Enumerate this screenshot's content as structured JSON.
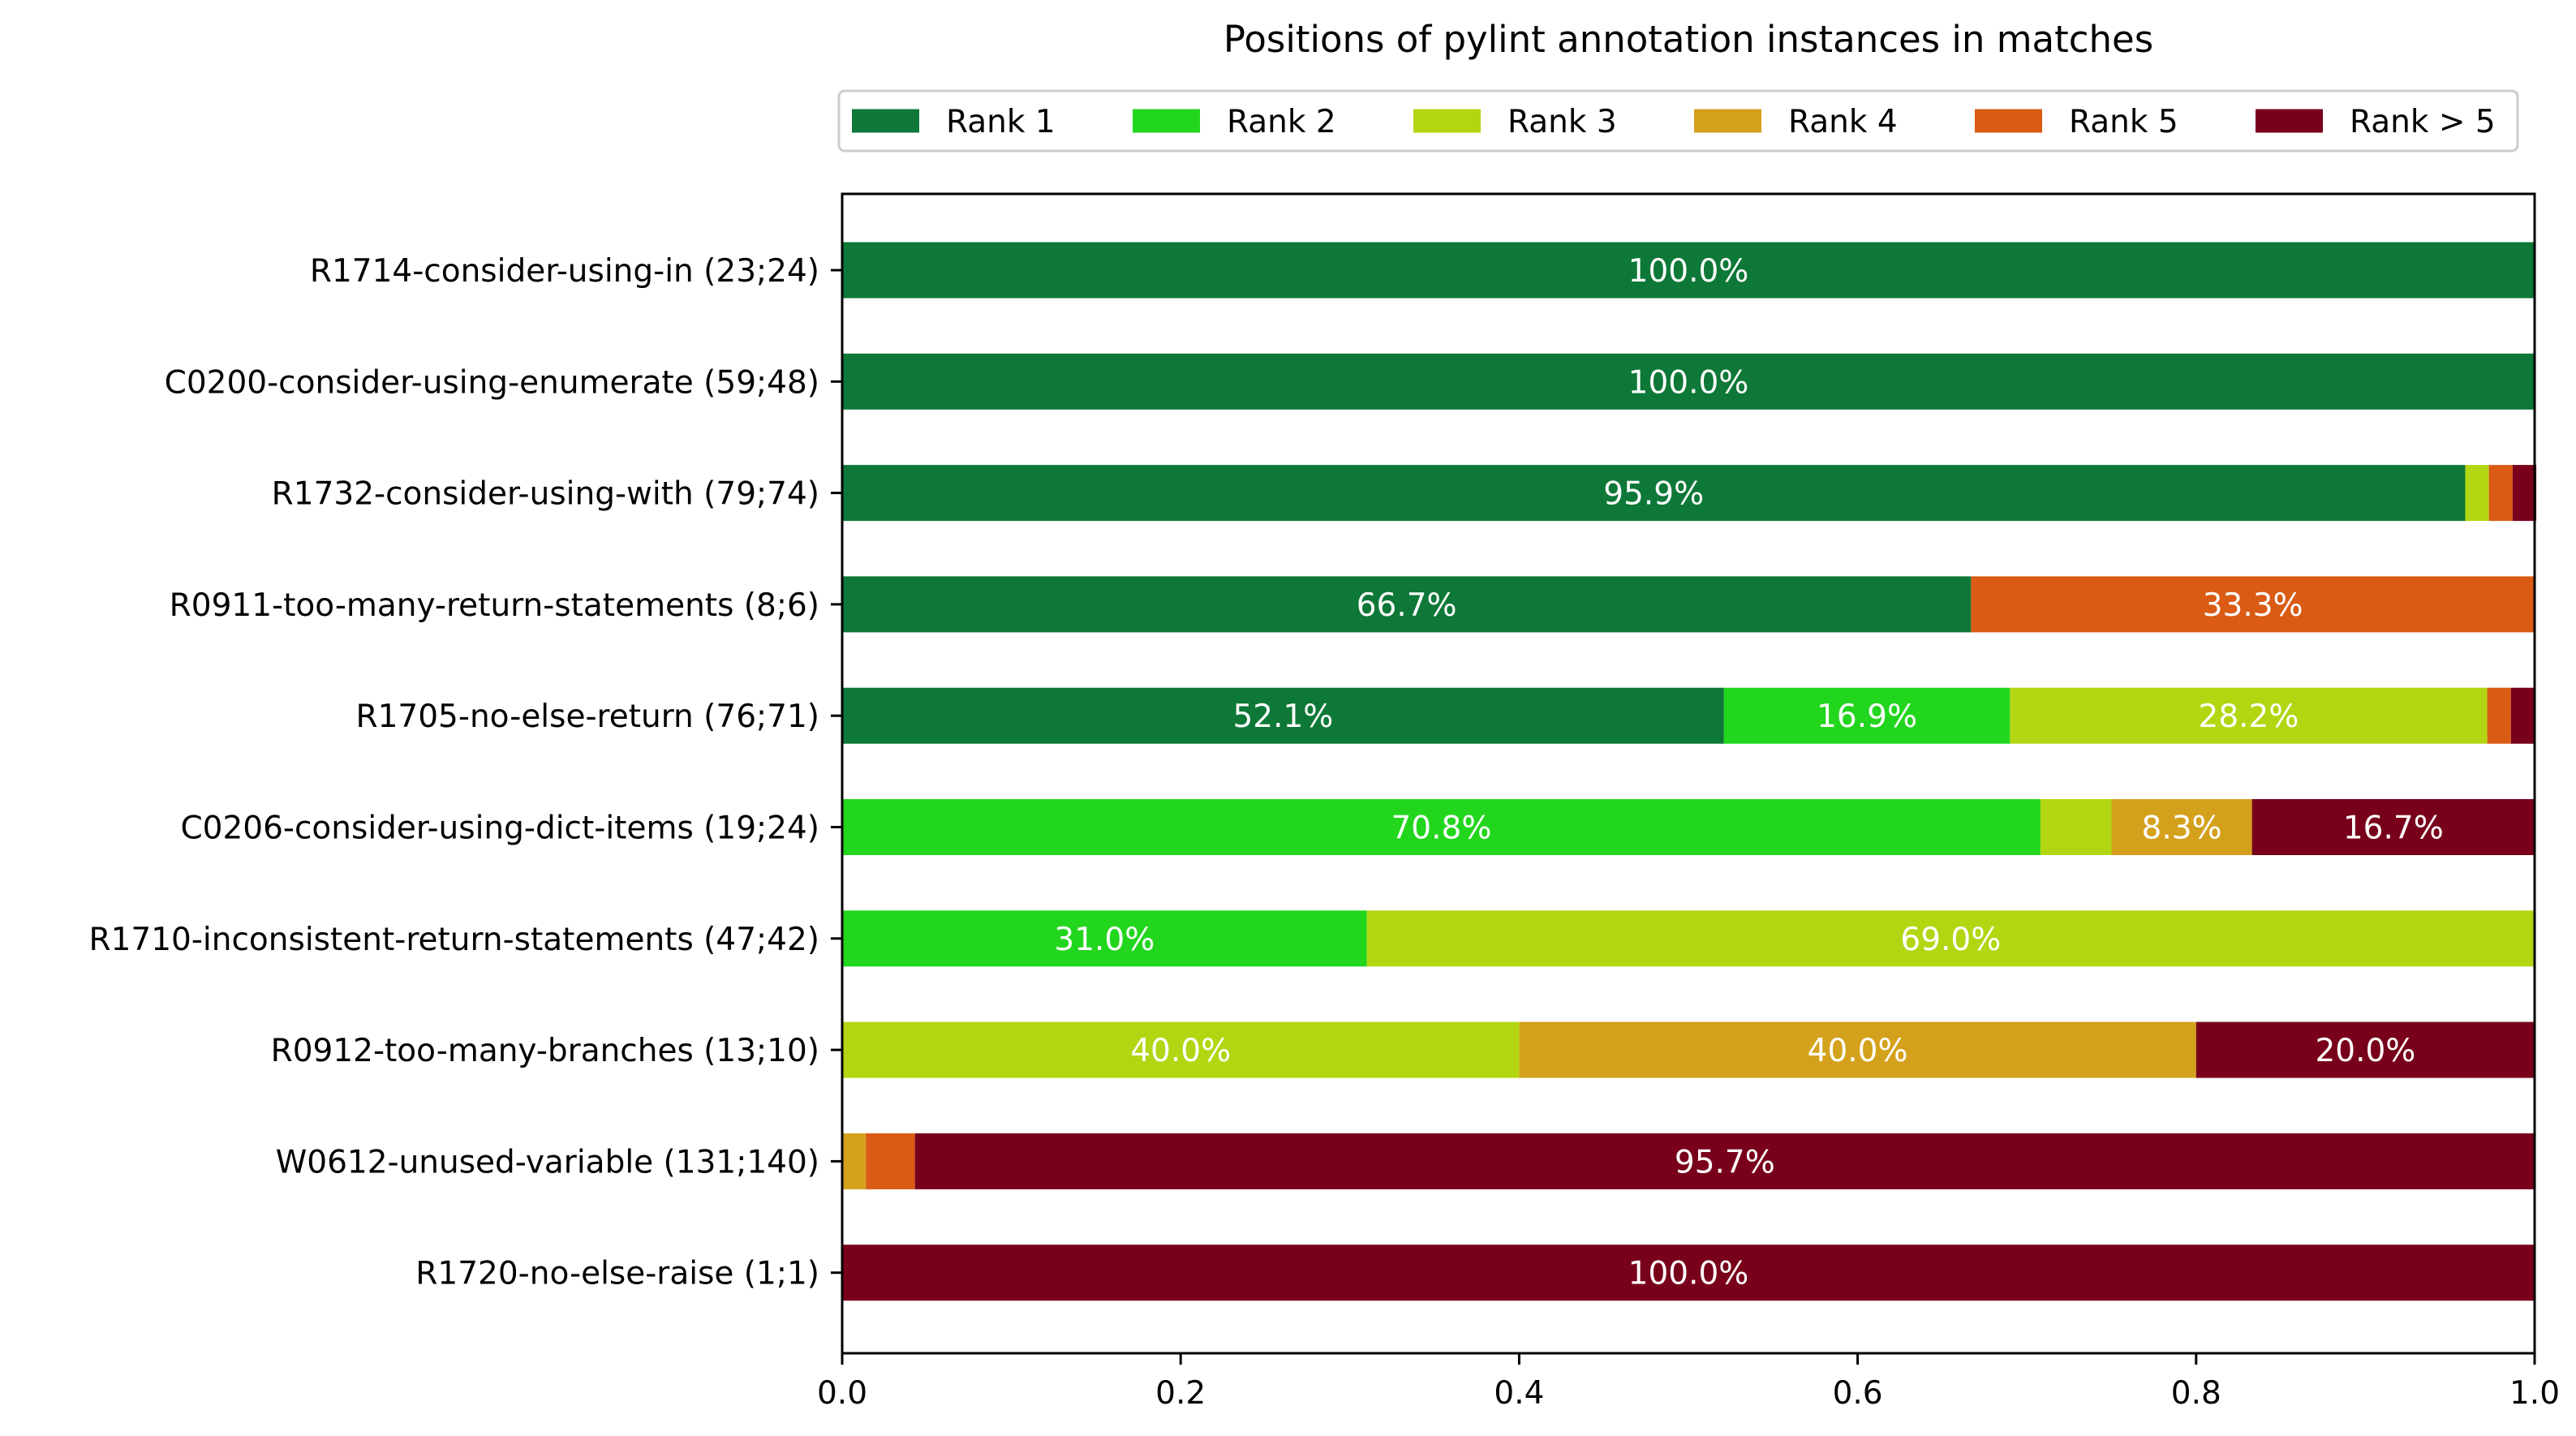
{
  "chart_data": {
    "type": "bar",
    "orientation": "horizontal",
    "stacked": true,
    "title": "Positions of pylint annotation instances in matches",
    "xlabel": "",
    "ylabel": "",
    "xlim": [
      0,
      1
    ],
    "xticks": [
      0.0,
      0.2,
      0.4,
      0.6,
      0.8,
      1.0
    ],
    "xtick_labels": [
      "0.0",
      "0.2",
      "0.4",
      "0.6",
      "0.8",
      "1.0"
    ],
    "grid": false,
    "legend_position": "top",
    "categories": [
      "R1714-consider-using-in (23;24)",
      "C0200-consider-using-enumerate (59;48)",
      "R1732-consider-using-with (79;74)",
      "R0911-too-many-return-statements (8;6)",
      "R1705-no-else-return (76;71)",
      "C0206-consider-using-dict-items (19;24)",
      "R1710-inconsistent-return-statements (47;42)",
      "R0912-too-many-branches (13;10)",
      "W0612-unused-variable (131;140)",
      "R1720-no-else-raise (1;1)"
    ],
    "series": [
      {
        "name": "Rank 1",
        "color": "#0d7837",
        "values": [
          1.0,
          1.0,
          0.959,
          0.667,
          0.521,
          0.0,
          0.0,
          0.0,
          0.0,
          0.0
        ],
        "labels": [
          "100.0%",
          "100.0%",
          "95.9%",
          "66.7%",
          "52.1%",
          "",
          "",
          "",
          "",
          ""
        ]
      },
      {
        "name": "Rank 2",
        "color": "#22d61e",
        "values": [
          0.0,
          0.0,
          0.0,
          0.0,
          0.169,
          0.708,
          0.31,
          0.0,
          0.0,
          0.0
        ],
        "labels": [
          "",
          "",
          "",
          "",
          "16.9%",
          "70.8%",
          "31.0%",
          "",
          "",
          ""
        ]
      },
      {
        "name": "Rank 3",
        "color": "#b2d612",
        "values": [
          0.0,
          0.0,
          0.014,
          0.0,
          0.282,
          0.042,
          0.69,
          0.4,
          0.0,
          0.0
        ],
        "labels": [
          "",
          "",
          "",
          "",
          "28.2%",
          "",
          "69.0%",
          "40.0%",
          "",
          ""
        ]
      },
      {
        "name": "Rank 4",
        "color": "#d4a11c",
        "values": [
          0.0,
          0.0,
          0.0,
          0.0,
          0.0,
          0.083,
          0.0,
          0.4,
          0.014,
          0.0
        ],
        "labels": [
          "",
          "",
          "",
          "",
          "",
          "8.3%",
          "",
          "40.0%",
          "",
          ""
        ]
      },
      {
        "name": "Rank 5",
        "color": "#d95b14",
        "values": [
          0.0,
          0.0,
          0.014,
          0.333,
          0.014,
          0.0,
          0.0,
          0.0,
          0.029,
          0.0
        ],
        "labels": [
          "",
          "",
          "",
          "33.3%",
          "",
          "",
          "",
          "",
          "",
          ""
        ]
      },
      {
        "name": "Rank > 5",
        "color": "#78001b",
        "values": [
          0.0,
          0.0,
          0.014,
          0.0,
          0.014,
          0.167,
          0.0,
          0.2,
          0.957,
          1.0
        ],
        "labels": [
          "",
          "",
          "",
          "",
          "",
          "16.7%",
          "",
          "20.0%",
          "95.7%",
          "100.0%"
        ]
      }
    ]
  }
}
